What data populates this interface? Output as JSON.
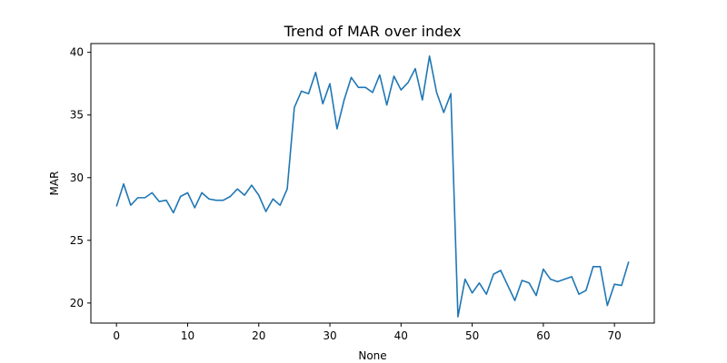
{
  "chart_data": {
    "type": "line",
    "title": "Trend of MAR over index",
    "xlabel": "None",
    "ylabel": "MAR",
    "xlim": [
      -3.6,
      75.6
    ],
    "ylim": [
      18.4,
      40.7
    ],
    "xticks": [
      0,
      10,
      20,
      30,
      40,
      50,
      60,
      70
    ],
    "yticks": [
      20,
      25,
      30,
      35,
      40
    ],
    "grid": false,
    "legend": "none",
    "series": [
      {
        "color": "#1f77b4",
        "x": [
          0,
          1,
          2,
          3,
          4,
          5,
          6,
          7,
          8,
          9,
          10,
          11,
          12,
          13,
          14,
          15,
          16,
          17,
          18,
          19,
          20,
          21,
          22,
          23,
          24,
          25,
          26,
          27,
          28,
          29,
          30,
          31,
          32,
          33,
          34,
          35,
          36,
          37,
          38,
          39,
          40,
          41,
          42,
          43,
          44,
          45,
          46,
          47,
          48,
          49,
          50,
          51,
          52,
          53,
          54,
          55,
          56,
          57,
          58,
          59,
          60,
          61,
          62,
          63,
          64,
          65,
          66,
          67,
          68,
          69,
          70,
          71,
          72
        ],
        "values": [
          27.7,
          29.5,
          27.8,
          28.4,
          28.4,
          28.8,
          28.1,
          28.2,
          27.2,
          28.5,
          28.8,
          27.6,
          28.8,
          28.3,
          28.2,
          28.2,
          28.5,
          29.1,
          28.6,
          29.4,
          28.6,
          27.3,
          28.3,
          27.8,
          29.1,
          35.6,
          36.9,
          36.7,
          38.4,
          35.9,
          37.5,
          33.9,
          36.2,
          38.0,
          37.2,
          37.2,
          36.8,
          38.2,
          35.8,
          38.1,
          37.0,
          37.6,
          38.7,
          36.2,
          39.7,
          36.8,
          35.2,
          36.7,
          18.9,
          21.9,
          20.8,
          21.6,
          20.7,
          22.3,
          22.6,
          21.4,
          20.2,
          21.8,
          21.6,
          20.6,
          22.7,
          21.9,
          21.7,
          21.9,
          22.1,
          20.7,
          21.0,
          22.9,
          22.9,
          19.8,
          21.5,
          21.4,
          23.3
        ]
      }
    ]
  }
}
